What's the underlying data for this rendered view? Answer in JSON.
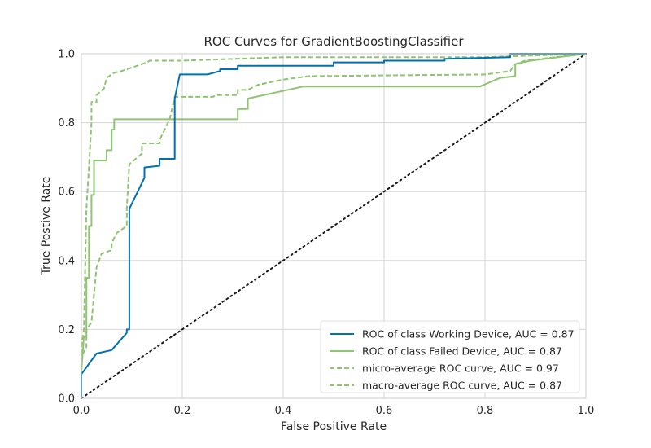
{
  "chart_data": {
    "type": "line",
    "title": "ROC Curves for GradientBoostingClassifier",
    "xlabel": "False Positive Rate",
    "ylabel": "True Postive Rate",
    "xlim": [
      0,
      1
    ],
    "ylim": [
      0,
      1
    ],
    "x_ticks": [
      "0.0",
      "0.2",
      "0.4",
      "0.6",
      "0.8",
      "1.0"
    ],
    "y_ticks": [
      "0.0",
      "0.2",
      "0.4",
      "0.6",
      "0.8",
      "1.0"
    ],
    "grid": true,
    "legend_position": "lower-right",
    "series": [
      {
        "name": "ROC of class Working Device, AUC = 0.87",
        "color": "#0072B2",
        "dash": "solid",
        "x": [
          0.0,
          0.0,
          0.03,
          0.03,
          0.06,
          0.06,
          0.09,
          0.09,
          0.095,
          0.095,
          0.125,
          0.125,
          0.155,
          0.155,
          0.185,
          0.185,
          0.195,
          0.215,
          0.215,
          0.25,
          0.275,
          0.275,
          0.31,
          0.31,
          0.5,
          0.5,
          0.6,
          0.6,
          0.72,
          0.72,
          0.85,
          0.85,
          1.0
        ],
        "y": [
          0.0,
          0.07,
          0.13,
          0.13,
          0.14,
          0.14,
          0.19,
          0.2,
          0.2,
          0.55,
          0.64,
          0.67,
          0.675,
          0.695,
          0.695,
          0.87,
          0.94,
          0.94,
          0.94,
          0.94,
          0.95,
          0.955,
          0.955,
          0.965,
          0.965,
          0.975,
          0.975,
          0.98,
          0.98,
          0.985,
          0.99,
          1.0,
          1.0
        ]
      },
      {
        "name": "ROC of class Failed Device, AUC = 0.87",
        "color": "#8FC470",
        "dash": "solid",
        "x": [
          0.0,
          0.0,
          0.005,
          0.01,
          0.01,
          0.015,
          0.015,
          0.02,
          0.02,
          0.025,
          0.025,
          0.03,
          0.03,
          0.04,
          0.05,
          0.05,
          0.06,
          0.06,
          0.065,
          0.065,
          0.31,
          0.31,
          0.33,
          0.33,
          0.44,
          0.79,
          0.83,
          0.86,
          0.86,
          0.89,
          1.0
        ],
        "y": [
          0.0,
          0.08,
          0.18,
          0.18,
          0.35,
          0.35,
          0.5,
          0.5,
          0.59,
          0.59,
          0.69,
          0.69,
          0.69,
          0.69,
          0.69,
          0.72,
          0.72,
          0.78,
          0.78,
          0.81,
          0.81,
          0.84,
          0.84,
          0.87,
          0.905,
          0.905,
          0.93,
          0.935,
          0.97,
          0.98,
          1.0
        ]
      },
      {
        "name": "micro-average ROC curve, AUC = 0.97",
        "color": "#8FC470",
        "dash": "dashed",
        "x": [
          0.0,
          0.0,
          0.005,
          0.01,
          0.015,
          0.02,
          0.02,
          0.03,
          0.03,
          0.045,
          0.05,
          0.06,
          0.065,
          0.08,
          0.1,
          0.12,
          0.13,
          0.135,
          0.2,
          0.4,
          0.6,
          0.8,
          0.9,
          1.0
        ],
        "y": [
          0.0,
          0.15,
          0.2,
          0.55,
          0.67,
          0.8,
          0.86,
          0.86,
          0.88,
          0.9,
          0.93,
          0.94,
          0.945,
          0.95,
          0.96,
          0.97,
          0.975,
          0.98,
          0.98,
          0.99,
          0.99,
          0.99,
          0.995,
          1.0
        ]
      },
      {
        "name": "macro-average ROC curve, AUC = 0.87",
        "color": "#8FC470",
        "dash": "dashed",
        "x": [
          0.0,
          0.0,
          0.01,
          0.01,
          0.02,
          0.03,
          0.04,
          0.06,
          0.06,
          0.07,
          0.08,
          0.09,
          0.09,
          0.095,
          0.12,
          0.12,
          0.155,
          0.155,
          0.175,
          0.185,
          0.21,
          0.26,
          0.27,
          0.31,
          0.31,
          0.33,
          0.35,
          0.4,
          0.45,
          0.8,
          0.85,
          0.86,
          0.88,
          1.0
        ],
        "y": [
          0.0,
          0.12,
          0.15,
          0.2,
          0.22,
          0.38,
          0.42,
          0.43,
          0.45,
          0.48,
          0.49,
          0.5,
          0.55,
          0.68,
          0.71,
          0.74,
          0.74,
          0.75,
          0.81,
          0.875,
          0.875,
          0.875,
          0.88,
          0.88,
          0.895,
          0.895,
          0.91,
          0.925,
          0.935,
          0.94,
          0.95,
          0.97,
          0.98,
          1.0
        ]
      }
    ],
    "reference_line": {
      "color": "#1a1a1a",
      "dash": "dotted",
      "x": [
        0,
        1
      ],
      "y": [
        0,
        1
      ]
    }
  }
}
